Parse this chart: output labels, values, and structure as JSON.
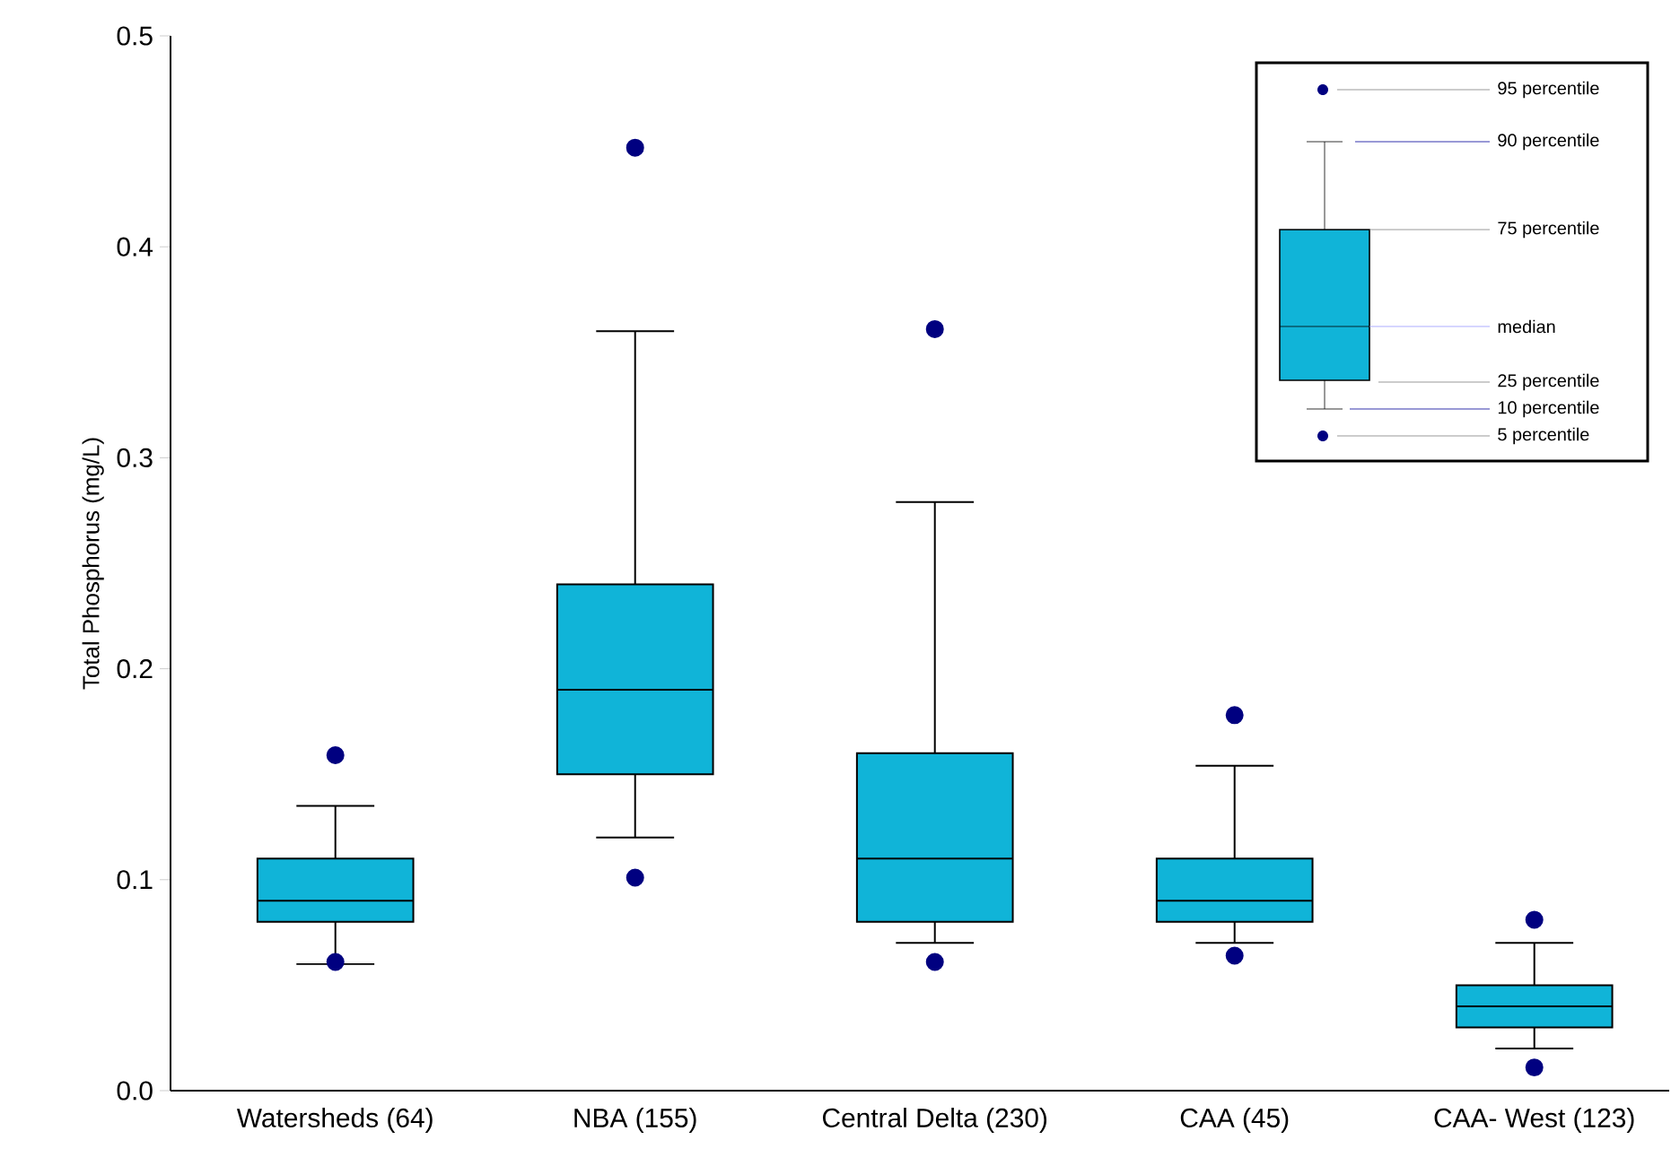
{
  "chart_data": {
    "type": "box",
    "ylabel": "Total Phosphorus (mg/L)",
    "categories": [
      "Watersheds (64)",
      "NBA (155)",
      "Central Delta (230)",
      "CAA (45)",
      "CAA- West (123)"
    ],
    "series": [
      {
        "color": "#10b4d8",
        "boxes": [
          {
            "low": 0.06,
            "q1": 0.08,
            "median": 0.09,
            "q3": 0.11,
            "high": 0.135,
            "outliers": [
              0.061,
              0.159
            ]
          },
          {
            "low": 0.12,
            "q1": 0.15,
            "median": 0.19,
            "q3": 0.24,
            "high": 0.36,
            "outliers": [
              0.101,
              0.447
            ]
          },
          {
            "low": 0.07,
            "q1": 0.08,
            "median": 0.11,
            "q3": 0.16,
            "high": 0.279,
            "outliers": [
              0.061,
              0.361
            ]
          },
          {
            "low": 0.07,
            "q1": 0.08,
            "median": 0.09,
            "q3": 0.11,
            "high": 0.154,
            "outliers": [
              0.064,
              0.178
            ]
          },
          {
            "low": 0.02,
            "q1": 0.03,
            "median": 0.04,
            "q3": 0.05,
            "high": 0.07,
            "outliers": [
              0.011,
              0.081
            ]
          }
        ]
      }
    ],
    "ylim": [
      0,
      0.5
    ],
    "yticks": [
      {
        "value": 0,
        "label": "0.0"
      },
      {
        "value": 0.1,
        "label": "0.1"
      },
      {
        "value": 0.2,
        "label": "0.2"
      },
      {
        "value": 0.3,
        "label": "0.3"
      },
      {
        "value": 0.4,
        "label": "0.4"
      },
      {
        "value": 0.5,
        "label": "0.5"
      }
    ],
    "annotations": [
      "95 percentile",
      "90 percentile",
      "75 percentile",
      "median",
      "25 percentile",
      "10 percentile",
      "5 percentile"
    ]
  }
}
